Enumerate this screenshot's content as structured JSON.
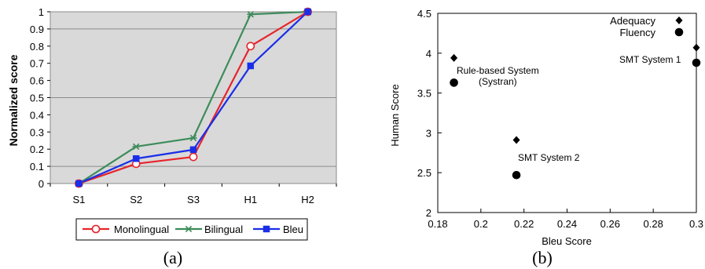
{
  "chart_data": [
    {
      "type": "line",
      "panel_label": "(a)",
      "ylabel": "Normalized score",
      "categories": [
        "S1",
        "S2",
        "S3",
        "H1",
        "H2"
      ],
      "ylim": [
        0,
        1
      ],
      "yticks": [
        "0",
        "0.1",
        "0.2",
        "0.3",
        "0.4",
        "0.5",
        "0.6",
        "0.7",
        "0.8",
        "0.9",
        "1"
      ],
      "grid": true,
      "plot_background": "#d9d9d9",
      "legend_position": "bottom",
      "series": [
        {
          "name": "Monolingual",
          "color": "#e8242c",
          "marker": "open-circle",
          "values": [
            0.0,
            0.115,
            0.155,
            0.8,
            1.0
          ]
        },
        {
          "name": "Bilingual",
          "color": "#3c8c5a",
          "marker": "star",
          "values": [
            0.0,
            0.215,
            0.265,
            0.985,
            1.0
          ]
        },
        {
          "name": "Bleu",
          "color": "#1a2ee8",
          "marker": "filled-square",
          "values": [
            0.0,
            0.145,
            0.197,
            0.685,
            1.0
          ]
        }
      ]
    },
    {
      "type": "scatter",
      "panel_label": "(b)",
      "xlabel": "Bleu Score",
      "ylabel": "Human Score",
      "xlim": [
        0.18,
        0.3
      ],
      "ylim": [
        2,
        4.5
      ],
      "xticks": [
        "0.18",
        "0.2",
        "0.22",
        "0.24",
        "0.26",
        "0.28",
        "0.3"
      ],
      "yticks": [
        "2",
        "2.5",
        "3",
        "3.5",
        "4",
        "4.5"
      ],
      "grid": false,
      "legend_position": "top-right",
      "series": [
        {
          "name": "Adequacy",
          "marker": "diamond",
          "color": "#000000",
          "points": [
            {
              "x": 0.1875,
              "y": 3.94
            },
            {
              "x": 0.2165,
              "y": 2.91
            },
            {
              "x": 0.3,
              "y": 4.07
            }
          ]
        },
        {
          "name": "Fluency",
          "marker": "circle",
          "color": "#000000",
          "points": [
            {
              "x": 0.1875,
              "y": 3.63
            },
            {
              "x": 0.2165,
              "y": 2.47
            },
            {
              "x": 0.3,
              "y": 3.88
            }
          ]
        }
      ],
      "annotations": [
        "Rule-based System",
        "(Systran)",
        "SMT System 2",
        "SMT System 1"
      ]
    }
  ]
}
